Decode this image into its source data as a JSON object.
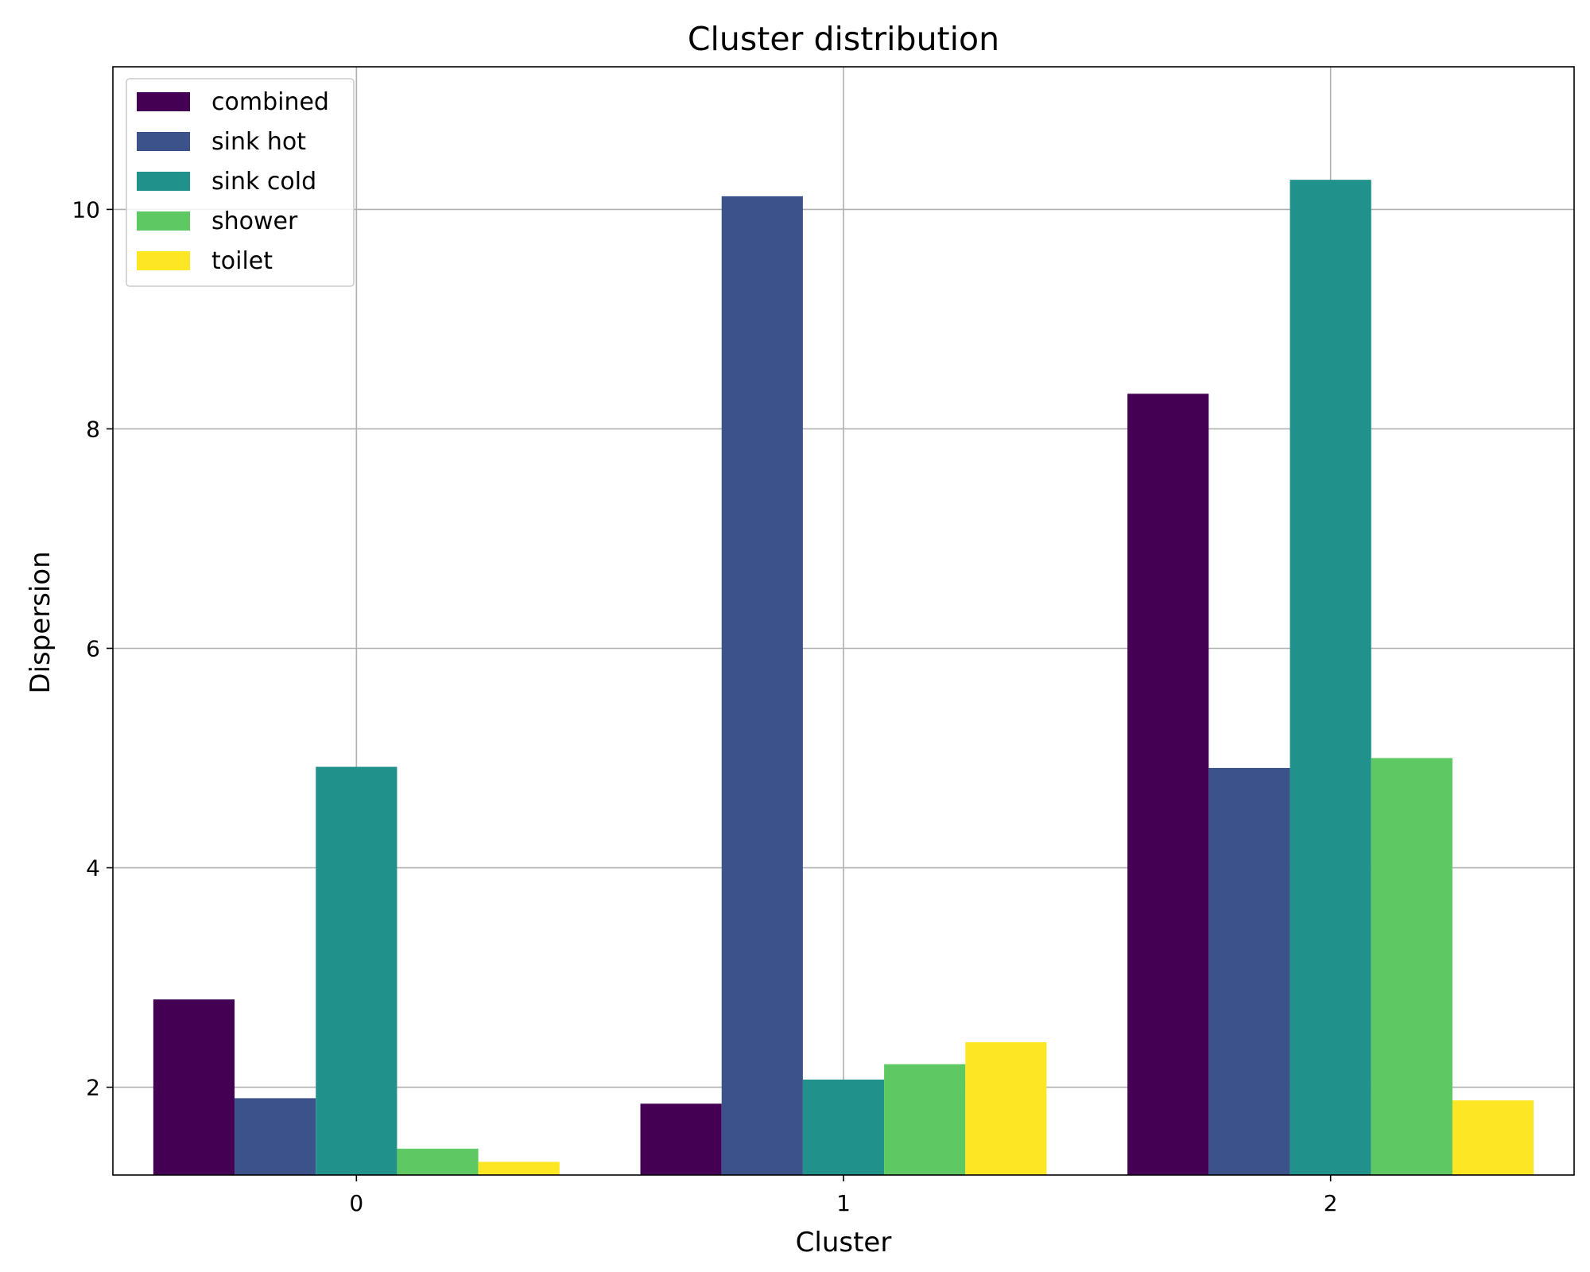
{
  "chart_data": {
    "type": "bar",
    "title": "Cluster distribution",
    "xlabel": "Cluster",
    "ylabel": "Dispersion",
    "categories": [
      "0",
      "1",
      "2"
    ],
    "ylim": [
      1.2,
      11.3
    ],
    "yticks": [
      2,
      4,
      6,
      8,
      10
    ],
    "grid": true,
    "legend_position": "top-left",
    "series": [
      {
        "name": "combined",
        "color": "#440154",
        "values": [
          2.8,
          1.85,
          8.32
        ]
      },
      {
        "name": "sink hot",
        "color": "#3b528b",
        "values": [
          1.9,
          10.12,
          4.91
        ]
      },
      {
        "name": "sink cold",
        "color": "#21918c",
        "values": [
          4.92,
          2.07,
          10.27
        ]
      },
      {
        "name": "shower",
        "color": "#5ec962",
        "values": [
          1.44,
          2.21,
          5.0
        ]
      },
      {
        "name": "toilet",
        "color": "#fde725",
        "values": [
          1.32,
          2.41,
          1.88
        ]
      }
    ]
  }
}
